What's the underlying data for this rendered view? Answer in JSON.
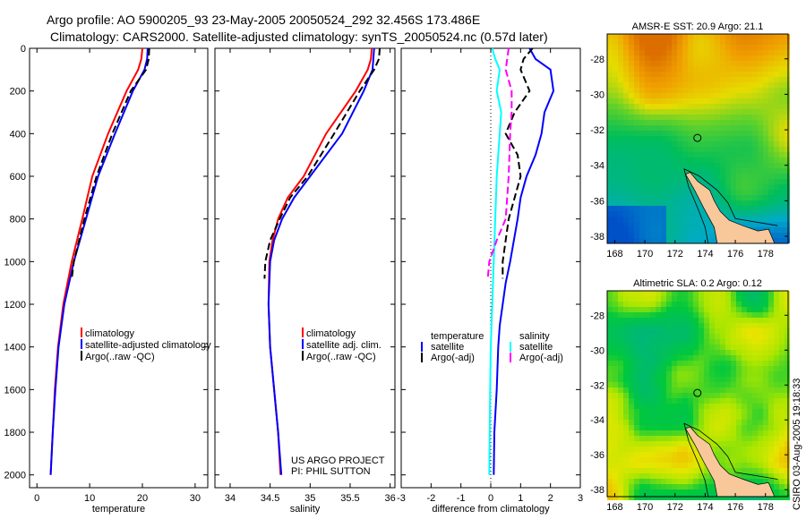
{
  "header": {
    "line1": "Argo profile: AO 5900205_93 23-May-2005 20050524_292 32.456S 173.486E",
    "line2": "Climatology: CARS2000. Satellite-adjusted climatology: synTS_20050524.nc (0.57d later)"
  },
  "credit": {
    "project": "US ARGO PROJECT",
    "pi": "PI: PHIL SUTTON",
    "stamp": "CSIRO 03-Aug-2005 19:18:33"
  },
  "colors": {
    "climatology": "#ff0000",
    "satellite": "#0000ff",
    "argo": "#000000",
    "sal_sat": "#00ffff",
    "sal_argo": "#ff00ff"
  },
  "chart_data": [
    {
      "type": "line",
      "xlabel": "temperature",
      "ylabel": "",
      "xlim": [
        -1.4,
        32.4
      ],
      "ylim": [
        2060,
        0
      ],
      "xticks": [
        0,
        10,
        20,
        30
      ],
      "yticks": [
        0,
        200,
        400,
        600,
        800,
        1000,
        1200,
        1400,
        1600,
        1800,
        2000
      ],
      "legend": [
        "climatology",
        "satellite-adjusted climatology",
        "Argo(..raw -QC)"
      ],
      "series": [
        {
          "name": "climatology",
          "color": "#ff0000",
          "dash": false,
          "points": [
            [
              20,
              0
            ],
            [
              19.8,
              50
            ],
            [
              19.2,
              100
            ],
            [
              17,
              200
            ],
            [
              13.5,
              400
            ],
            [
              10.5,
              600
            ],
            [
              8.6,
              800
            ],
            [
              6.6,
              1000
            ],
            [
              5,
              1200
            ],
            [
              4,
              1400
            ],
            [
              3.4,
              1600
            ],
            [
              3,
              1800
            ],
            [
              2.6,
              2000
            ]
          ]
        },
        {
          "name": "satellite-adjusted climatology",
          "color": "#0000ff",
          "dash": false,
          "points": [
            [
              21,
              0
            ],
            [
              20.9,
              50
            ],
            [
              20.4,
              100
            ],
            [
              18.2,
              200
            ],
            [
              14.8,
              400
            ],
            [
              11.6,
              600
            ],
            [
              9.3,
              800
            ],
            [
              7,
              1000
            ],
            [
              5.2,
              1200
            ],
            [
              4.1,
              1400
            ],
            [
              3.5,
              1600
            ],
            [
              3,
              1800
            ],
            [
              2.6,
              2000
            ]
          ]
        },
        {
          "name": "Argo(..raw -QC)",
          "color": "#000000",
          "dash": true,
          "points": [
            [
              21.3,
              0
            ],
            [
              21.2,
              50
            ],
            [
              20.7,
              100
            ],
            [
              17.8,
              200
            ],
            [
              14.3,
              400
            ],
            [
              11.3,
              600
            ],
            [
              9,
              800
            ],
            [
              7,
              1000
            ],
            [
              6.6,
              1080
            ]
          ]
        }
      ]
    },
    {
      "type": "line",
      "xlabel": "salinity",
      "xlim": [
        33.81,
        36.06
      ],
      "ylim": [
        2060,
        0
      ],
      "xticks": [
        34,
        34.5,
        35,
        35.5,
        36
      ],
      "legend": [
        "climatology",
        "satellite adj. clim.",
        "Argo(..raw -QC)"
      ],
      "series": [
        {
          "name": "climatology",
          "color": "#ff0000",
          "dash": false,
          "points": [
            [
              35.77,
              0
            ],
            [
              35.76,
              50
            ],
            [
              35.72,
              100
            ],
            [
              35.57,
              200
            ],
            [
              35.2,
              400
            ],
            [
              34.92,
              600
            ],
            [
              34.72,
              700
            ],
            [
              34.6,
              800
            ],
            [
              34.53,
              900
            ],
            [
              34.49,
              1000
            ],
            [
              34.48,
              1200
            ],
            [
              34.5,
              1400
            ],
            [
              34.55,
              1600
            ],
            [
              34.6,
              1800
            ],
            [
              34.63,
              2000
            ]
          ]
        },
        {
          "name": "satellite adj. clim.",
          "color": "#0000ff",
          "dash": false,
          "points": [
            [
              35.8,
              0
            ],
            [
              35.79,
              50
            ],
            [
              35.78,
              100
            ],
            [
              35.67,
              200
            ],
            [
              35.4,
              400
            ],
            [
              35.0,
              600
            ],
            [
              34.8,
              700
            ],
            [
              34.65,
              800
            ],
            [
              34.55,
              900
            ],
            [
              34.5,
              1000
            ],
            [
              34.48,
              1200
            ],
            [
              34.5,
              1400
            ],
            [
              34.55,
              1600
            ],
            [
              34.6,
              1800
            ],
            [
              34.64,
              2000
            ]
          ]
        },
        {
          "name": "Argo(..raw -QC)",
          "color": "#000000",
          "dash": true,
          "points": [
            [
              35.87,
              0
            ],
            [
              35.86,
              50
            ],
            [
              35.8,
              100
            ],
            [
              35.62,
              200
            ],
            [
              35.3,
              400
            ],
            [
              34.97,
              600
            ],
            [
              34.75,
              700
            ],
            [
              34.62,
              800
            ],
            [
              34.5,
              900
            ],
            [
              34.44,
              1000
            ],
            [
              34.43,
              1080
            ]
          ]
        }
      ]
    },
    {
      "type": "line",
      "xlabel": "difference from climatology",
      "xlim": [
        -3,
        3
      ],
      "ylim": [
        2060,
        0
      ],
      "xticks": [
        -3,
        -2,
        -1,
        0,
        1,
        2,
        3
      ],
      "legend": {
        "temperature": [
          "temperature",
          "satellite",
          "Argo(-adj)"
        ],
        "salinity": [
          "salinity",
          "satellite",
          "Argo(-adj)"
        ]
      },
      "series": [
        {
          "name": "temperature satellite",
          "color": "#0000ff",
          "dash": false,
          "points": [
            [
              1.3,
              0
            ],
            [
              1.5,
              50
            ],
            [
              2.0,
              100
            ],
            [
              2.1,
              200
            ],
            [
              1.8,
              300
            ],
            [
              1.7,
              400
            ],
            [
              1.5,
              500
            ],
            [
              1.2,
              600
            ],
            [
              1.0,
              700
            ],
            [
              0.9,
              800
            ],
            [
              0.65,
              1000
            ],
            [
              0.5,
              1100
            ],
            [
              0.3,
              1300
            ],
            [
              0.25,
              1400
            ],
            [
              0.2,
              1600
            ],
            [
              0.12,
              1800
            ],
            [
              0.1,
              2000
            ]
          ]
        },
        {
          "name": "temperature Argo(-adj)",
          "color": "#000000",
          "dash": true,
          "points": [
            [
              1.4,
              0
            ],
            [
              1.1,
              50
            ],
            [
              1.0,
              100
            ],
            [
              1.3,
              200
            ],
            [
              0.8,
              300
            ],
            [
              0.5,
              400
            ],
            [
              0.9,
              500
            ],
            [
              1.0,
              600
            ],
            [
              0.8,
              700
            ],
            [
              0.6,
              800
            ],
            [
              0.4,
              1000
            ],
            [
              0.4,
              1080
            ]
          ]
        },
        {
          "name": "salinity satellite",
          "color": "#00ffff",
          "dash": false,
          "points": [
            [
              0.05,
              0
            ],
            [
              0.15,
              50
            ],
            [
              0.3,
              100
            ],
            [
              0.2,
              200
            ],
            [
              0.35,
              300
            ],
            [
              0.3,
              400
            ],
            [
              0.25,
              500
            ],
            [
              0.2,
              600
            ],
            [
              0.15,
              800
            ],
            [
              0.1,
              1000
            ],
            [
              0.05,
              1200
            ],
            [
              0.0,
              1400
            ],
            [
              -0.02,
              1600
            ],
            [
              -0.05,
              2000
            ]
          ]
        },
        {
          "name": "salinity Argo(-adj)",
          "color": "#ff00ff",
          "dash": true,
          "points": [
            [
              0.6,
              0
            ],
            [
              0.55,
              50
            ],
            [
              0.5,
              100
            ],
            [
              0.7,
              200
            ],
            [
              0.7,
              300
            ],
            [
              0.65,
              400
            ],
            [
              0.6,
              600
            ],
            [
              0.5,
              800
            ],
            [
              0.2,
              900
            ],
            [
              -0.05,
              1000
            ],
            [
              -0.1,
              1080
            ]
          ]
        }
      ]
    }
  ],
  "maps": [
    {
      "title": "AMSR-E SST: 20.9 Argo: 21.1",
      "lon_ticks": [
        "168",
        "170",
        "172",
        "174",
        "176",
        "178"
      ],
      "lat_ticks": [
        "-28",
        "-30",
        "-32",
        "-34",
        "-36",
        "-38"
      ]
    },
    {
      "title": "Altimetric SLA: 0.2 Argo: 0.12",
      "lon_ticks": [
        "168",
        "170",
        "172",
        "174",
        "176",
        "178"
      ],
      "lat_ticks": [
        "-28",
        "-30",
        "-32",
        "-34",
        "-36",
        "-38"
      ]
    }
  ]
}
